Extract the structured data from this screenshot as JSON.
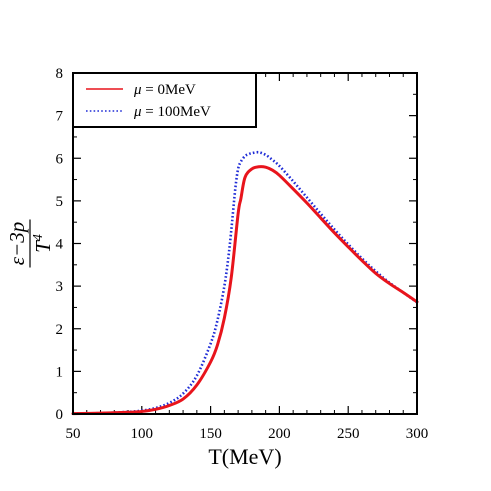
{
  "chart_data": {
    "type": "line",
    "title": "",
    "xlabel": "T(MeV)",
    "ylabel": {
      "numerator": "ε−3p",
      "denominator": "T",
      "denominator_sup": "4"
    },
    "xlim": [
      50,
      300
    ],
    "ylim": [
      0,
      8
    ],
    "xticks": [
      50,
      100,
      150,
      200,
      250,
      300
    ],
    "yticks": [
      0,
      1,
      2,
      3,
      4,
      5,
      6,
      7,
      8
    ],
    "grid": false,
    "legend_position": "top-left",
    "series": [
      {
        "name": "μ = 0MeV",
        "legend_symbol": "μ",
        "legend_rest": " = 0MeV",
        "color": "#e8141c",
        "style": "solid",
        "x": [
          50,
          70,
          90,
          100,
          110,
          120,
          130,
          140,
          150,
          155,
          160,
          165,
          170,
          172,
          175,
          180,
          185,
          190,
          195,
          200,
          210,
          220,
          230,
          240,
          250,
          260,
          270,
          280,
          290,
          300
        ],
        "y": [
          0.01,
          0.02,
          0.04,
          0.06,
          0.11,
          0.2,
          0.35,
          0.68,
          1.22,
          1.62,
          2.25,
          3.2,
          4.7,
          5.05,
          5.55,
          5.75,
          5.8,
          5.79,
          5.72,
          5.6,
          5.28,
          4.95,
          4.6,
          4.25,
          3.92,
          3.6,
          3.3,
          3.06,
          2.85,
          2.63
        ]
      },
      {
        "name": "μ = 100MeV",
        "legend_symbol": "μ",
        "legend_rest": " = 100MeV",
        "color": "#1f2cd6",
        "style": "dotted",
        "x": [
          50,
          70,
          90,
          100,
          110,
          120,
          130,
          140,
          150,
          155,
          160,
          163,
          165,
          168,
          170,
          172,
          175,
          178,
          180,
          185,
          190,
          195,
          200,
          210,
          220,
          230,
          240,
          250,
          260,
          270,
          280,
          290,
          300
        ],
        "y": [
          0.01,
          0.02,
          0.05,
          0.08,
          0.14,
          0.26,
          0.48,
          0.9,
          1.65,
          2.2,
          3.0,
          3.7,
          4.3,
          5.3,
          5.75,
          5.92,
          6.05,
          6.1,
          6.12,
          6.14,
          6.08,
          5.96,
          5.82,
          5.46,
          5.08,
          4.7,
          4.33,
          3.98,
          3.65,
          3.35,
          3.08,
          2.85,
          2.62
        ]
      }
    ]
  }
}
